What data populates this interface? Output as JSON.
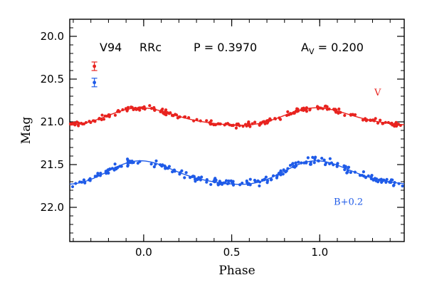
{
  "chart_data": {
    "type": "scatter",
    "xlabel": "Phase",
    "ylabel": "Mag",
    "xlim": [
      -0.42,
      1.48
    ],
    "ylim": [
      22.4,
      19.8
    ],
    "y_inverted": true,
    "x_ticks": [
      -0.0,
      0.5,
      1.0
    ],
    "x_tick_labels": [
      "0.0",
      "0.5",
      "1.0"
    ],
    "y_ticks": [
      20.0,
      20.5,
      21.0,
      21.5,
      22.0
    ],
    "y_tick_labels": [
      "20.0",
      "20.5",
      "21.0",
      "21.5",
      "22.0"
    ],
    "grid": false,
    "header": {
      "star": "V94",
      "type": "RRc",
      "period": "P = 0.3970",
      "amplitude_symbol": "A",
      "amplitude_sub": "V",
      "amplitude_value": " = 0.200"
    },
    "error_bars": [
      {
        "series": "V",
        "x": -0.28,
        "y": 20.35,
        "err": 0.05
      },
      {
        "series": "B",
        "x": -0.28,
        "y": 20.54,
        "err": 0.05
      }
    ],
    "series": [
      {
        "name": "V",
        "color": "#e8231f",
        "mean": 20.95,
        "amplitude": 0.2,
        "offset": 0.0,
        "label": "V",
        "label_pos": [
          1.31,
          20.69
        ]
      },
      {
        "name": "B+0.2",
        "color": "#1f5be8",
        "mean": 21.61,
        "amplitude": 0.27,
        "offset": 0.2,
        "label": "B+0.2",
        "label_pos": [
          1.08,
          21.97
        ]
      }
    ]
  }
}
